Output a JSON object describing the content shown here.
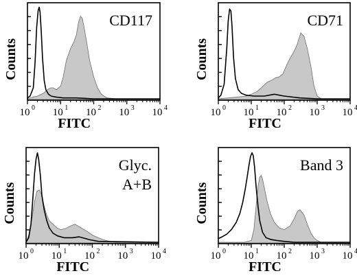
{
  "chart_data": [
    {
      "type": "area",
      "marker": "CD117",
      "xlabel": "FITC",
      "ylabel": "Counts",
      "x_scale": "log",
      "xlim": [
        1,
        10000
      ],
      "x_ticks": [
        "0",
        "1",
        "2",
        "3",
        "4"
      ],
      "x_tick_base": "10",
      "series": [
        {
          "style": "line",
          "x": [
            1.0,
            1.2,
            1.5,
            1.7,
            1.9,
            2.1,
            2.25,
            2.4,
            2.6,
            2.85,
            3.2,
            3.6,
            4.3,
            5.2,
            7.0,
            12,
            30,
            100,
            1000,
            10000
          ],
          "y": [
            1,
            3,
            12,
            40,
            78,
            96,
            100,
            95,
            75,
            45,
            20,
            10,
            5,
            3,
            2,
            1,
            1,
            0,
            0,
            0
          ]
        },
        {
          "style": "filled",
          "x": [
            1.0,
            1.5,
            2.0,
            3.0,
            4.0,
            5.0,
            6.0,
            7.5,
            10,
            12,
            15,
            20,
            25,
            30,
            35,
            40,
            45,
            50,
            60,
            75,
            100,
            130,
            170,
            250,
            500,
            10000
          ],
          "y": [
            0,
            2,
            3,
            6,
            10,
            12,
            12,
            10,
            14,
            24,
            42,
            55,
            62,
            70,
            84,
            90,
            88,
            80,
            64,
            42,
            24,
            12,
            5,
            1,
            0,
            0
          ]
        }
      ]
    },
    {
      "type": "area",
      "marker": "CD71",
      "xlabel": "FITC",
      "ylabel": "Counts",
      "x_scale": "log",
      "xlim": [
        1,
        10000
      ],
      "x_ticks": [
        "0",
        "1",
        "2",
        "3",
        "4"
      ],
      "x_tick_base": "10",
      "series": [
        {
          "style": "line",
          "x": [
            1.0,
            1.2,
            1.5,
            1.8,
            2.0,
            2.2,
            2.4,
            2.6,
            2.9,
            3.3,
            4.0,
            5.0,
            7.0,
            12,
            25,
            50,
            100,
            300,
            1000,
            10000
          ],
          "y": [
            1,
            4,
            16,
            55,
            85,
            98,
            96,
            80,
            45,
            22,
            10,
            6,
            4,
            3,
            3,
            5,
            3,
            1,
            0,
            0
          ]
        },
        {
          "style": "filled",
          "x": [
            1.0,
            2.0,
            4.0,
            7.0,
            10,
            15,
            20,
            30,
            40,
            55,
            70,
            90,
            110,
            130,
            160,
            200,
            240,
            280,
            320,
            400,
            500,
            650,
            800,
            1000,
            1300,
            10000
          ],
          "y": [
            0,
            1,
            2,
            3,
            5,
            8,
            12,
            18,
            20,
            23,
            24,
            27,
            34,
            40,
            46,
            52,
            58,
            66,
            72,
            68,
            55,
            35,
            14,
            3,
            0,
            0
          ]
        }
      ]
    },
    {
      "type": "area",
      "marker": "Glyc.",
      "marker_line2": "A+B",
      "xlabel": "FITC",
      "ylabel": "Counts",
      "x_scale": "log",
      "xlim": [
        1,
        10000
      ],
      "x_ticks": [
        "0",
        "1",
        "2",
        "3",
        "4"
      ],
      "x_tick_base": "10",
      "series": [
        {
          "style": "line",
          "x": [
            1.0,
            1.2,
            1.4,
            1.6,
            1.8,
            2.0,
            2.2,
            2.4,
            2.7,
            3.0,
            3.5,
            4.2,
            5.0,
            6.5,
            9.0,
            14,
            25,
            40,
            80,
            150,
            10000
          ],
          "y": [
            0,
            5,
            20,
            48,
            76,
            92,
            99,
            92,
            74,
            52,
            36,
            24,
            16,
            10,
            7,
            5,
            5,
            6,
            3,
            1,
            0
          ]
        },
        {
          "style": "filled",
          "x": [
            1.0,
            1.2,
            1.5,
            1.8,
            2.1,
            2.5,
            3.0,
            3.5,
            4.2,
            5.0,
            6.5,
            8.5,
            11,
            15,
            22,
            30,
            45,
            70,
            100,
            150,
            250,
            350,
            500,
            10000
          ],
          "y": [
            0,
            8,
            26,
            45,
            56,
            58,
            52,
            40,
            30,
            24,
            20,
            16,
            14,
            15,
            18,
            20,
            16,
            12,
            8,
            5,
            2,
            1,
            0,
            0
          ]
        }
      ]
    },
    {
      "type": "area",
      "marker": "Band 3",
      "xlabel": "FITC",
      "ylabel": "Counts",
      "x_scale": "log",
      "xlim": [
        1,
        10000
      ],
      "x_ticks": [
        "0",
        "1",
        "2",
        "3",
        "4"
      ],
      "x_tick_base": "10",
      "series": [
        {
          "style": "line",
          "x": [
            1.0,
            1.3,
            1.8,
            2.5,
            3.5,
            4.5,
            5.5,
            6.5,
            7.5,
            8.5,
            9.5,
            10.5,
            11.5,
            12.5,
            14,
            16,
            18,
            22,
            28,
            40,
            60,
            100,
            200,
            10000
          ],
          "y": [
            4,
            6,
            9,
            14,
            22,
            32,
            44,
            58,
            72,
            85,
            95,
            99,
            96,
            84,
            62,
            40,
            24,
            11,
            5,
            3,
            2,
            1,
            0,
            0
          ]
        },
        {
          "style": "filled",
          "x": [
            1.0,
            6.0,
            10,
            12,
            14,
            16,
            18,
            20,
            22,
            25,
            30,
            38,
            50,
            70,
            100,
            150,
            200,
            250,
            300,
            400,
            500,
            650,
            800,
            1000,
            1300,
            10000
          ],
          "y": [
            0,
            0,
            2,
            14,
            40,
            62,
            72,
            74,
            70,
            60,
            46,
            32,
            22,
            16,
            14,
            18,
            26,
            34,
            36,
            30,
            20,
            10,
            5,
            2,
            0,
            0
          ]
        }
      ]
    }
  ]
}
